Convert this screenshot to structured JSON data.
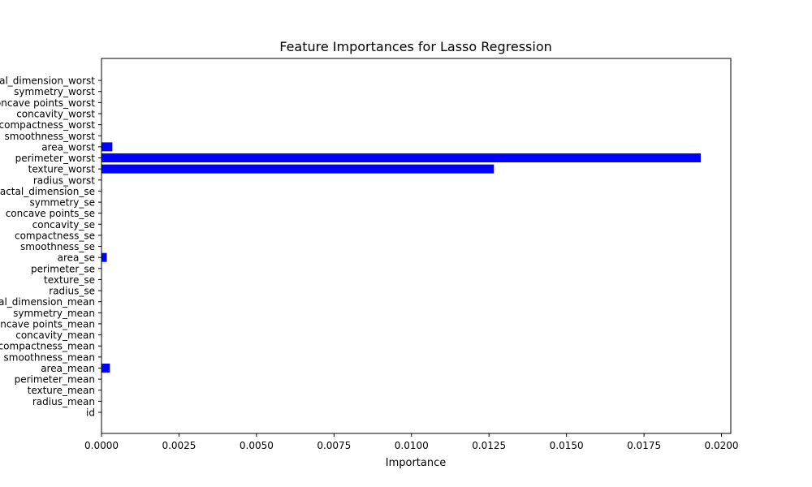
{
  "chart_data": {
    "type": "bar",
    "orientation": "horizontal",
    "title": "Feature Importances for Lasso Regression",
    "xlabel": "Importance",
    "ylabel": "",
    "xlim": [
      0,
      0.0203
    ],
    "xticks": [
      0.0,
      0.0025,
      0.005,
      0.0075,
      0.01,
      0.0125,
      0.015,
      0.0175,
      0.02
    ],
    "xtick_labels": [
      "0.0000",
      "0.0025",
      "0.0050",
      "0.0075",
      "0.0100",
      "0.0125",
      "0.0150",
      "0.0175",
      "0.0200"
    ],
    "grid": false,
    "bar_color": "#0000ff",
    "categories": [
      "id",
      "radius_mean",
      "texture_mean",
      "perimeter_mean",
      "area_mean",
      "smoothness_mean",
      "compactness_mean",
      "concavity_mean",
      "concave points_mean",
      "symmetry_mean",
      "fractal_dimension_mean",
      "radius_se",
      "texture_se",
      "perimeter_se",
      "area_se",
      "smoothness_se",
      "compactness_se",
      "concavity_se",
      "concave points_se",
      "symmetry_se",
      "fractal_dimension_se",
      "radius_worst",
      "texture_worst",
      "perimeter_worst",
      "area_worst",
      "smoothness_worst",
      "compactness_worst",
      "concavity_worst",
      "concave points_worst",
      "symmetry_worst",
      "fractal_dimension_worst"
    ],
    "values": [
      0,
      0,
      0,
      0,
      0.00027,
      0,
      0,
      0,
      0,
      0,
      0,
      0,
      0,
      0,
      0.00017,
      0,
      0,
      0,
      0,
      0,
      0,
      0,
      0.01266,
      0.01933,
      0.00035,
      0,
      0,
      0,
      0,
      0,
      0
    ]
  }
}
